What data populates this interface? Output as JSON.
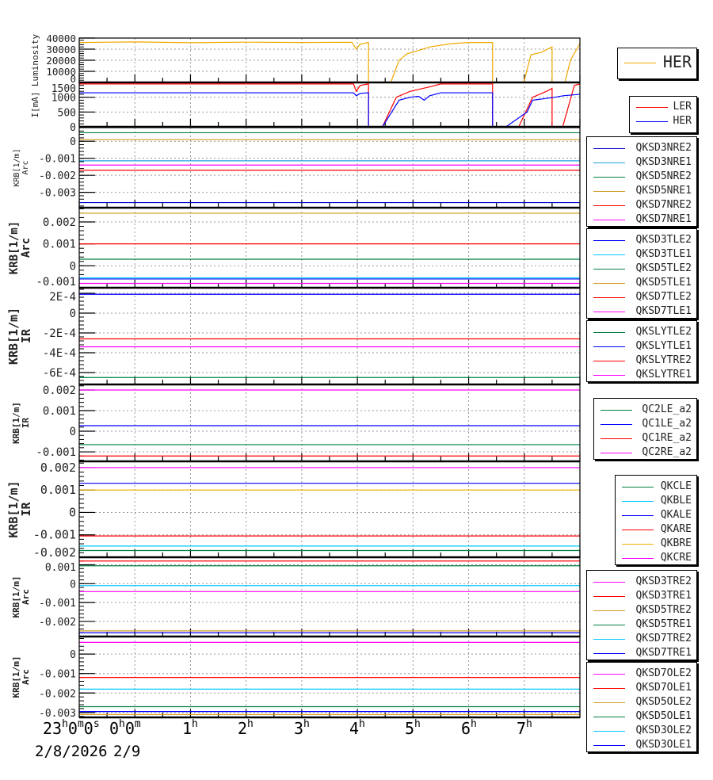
{
  "chart_data": {
    "type": "line",
    "x_axis": {
      "range_hours_from_2300": [
        0,
        9
      ],
      "tick_labels": [
        {
          "h": "23",
          "m": "0",
          "s": "0"
        },
        {
          "h": "0",
          "m": "0"
        },
        {
          "h": "1"
        },
        {
          "h": "2"
        },
        {
          "h": "3"
        },
        {
          "h": "4"
        },
        {
          "h": "5"
        },
        {
          "h": "6"
        },
        {
          "h": "7"
        }
      ],
      "unit_labels": {
        "h": "h",
        "m": "m",
        "s": "s"
      },
      "dates": [
        "2/8/2026",
        "2/9"
      ],
      "grid": true
    },
    "panels": [
      {
        "ylabel": [
          "Luminosity"
        ],
        "ylim": [
          0,
          40000
        ],
        "yticks": [
          "40000",
          "30000",
          "20000",
          "10000",
          "0"
        ],
        "ytick_values": [
          40000,
          30000,
          20000,
          10000,
          0
        ],
        "series": [
          {
            "name": "HER",
            "color": "#f0a800",
            "points": [
              [
                0,
                36000
              ],
              [
                1,
                36500
              ],
              [
                2,
                35800
              ],
              [
                3,
                36300
              ],
              [
                4,
                36000
              ],
              [
                4.9,
                36200
              ],
              [
                4.98,
                30000
              ],
              [
                5.05,
                34500
              ],
              [
                5.2,
                36000
              ],
              [
                5.2,
                0
              ],
              [
                5.6,
                0
              ],
              [
                5.75,
                20000
              ],
              [
                5.9,
                26000
              ],
              [
                6.05,
                28000
              ],
              [
                6.3,
                32000
              ],
              [
                6.7,
                35000
              ],
              [
                7.0,
                36000
              ],
              [
                7.43,
                36000
              ],
              [
                7.43,
                0
              ],
              [
                7.99,
                0
              ],
              [
                8.12,
                25000
              ],
              [
                8.3,
                27000
              ],
              [
                8.5,
                32000
              ],
              [
                8.5,
                0
              ],
              [
                8.73,
                0
              ],
              [
                8.83,
                20000
              ],
              [
                9,
                35000
              ]
            ]
          }
        ]
      },
      {
        "ylabel": [
          "I[mA]"
        ],
        "ylim": [
          0,
          1500
        ],
        "yticks": [
          "1500",
          "1000",
          "500",
          "0"
        ],
        "ytick_values": [
          1500,
          1000,
          500,
          0
        ],
        "series": [
          {
            "name": "LER",
            "color": "#ff0000",
            "points": [
              [
                0,
                1450
              ],
              [
                4.93,
                1450
              ],
              [
                4.98,
                1200
              ],
              [
                5.05,
                1400
              ],
              [
                5.2,
                1450
              ],
              [
                5.2,
                0
              ],
              [
                5.45,
                0
              ],
              [
                5.7,
                1000
              ],
              [
                5.95,
                1200
              ],
              [
                6.3,
                1350
              ],
              [
                6.5,
                1450
              ],
              [
                7.43,
                1450
              ],
              [
                7.43,
                0
              ],
              [
                7.9,
                0
              ],
              [
                8.15,
                1000
              ],
              [
                8.4,
                1200
              ],
              [
                8.5,
                1300
              ],
              [
                8.5,
                0
              ],
              [
                8.69,
                0
              ],
              [
                8.9,
                1400
              ],
              [
                9,
                1450
              ]
            ]
          },
          {
            "name": "HER",
            "color": "#0000ff",
            "points": [
              [
                0,
                1150
              ],
              [
                4.93,
                1150
              ],
              [
                4.98,
                1050
              ],
              [
                5.05,
                1130
              ],
              [
                5.2,
                1150
              ],
              [
                5.2,
                0
              ],
              [
                5.45,
                0
              ],
              [
                5.75,
                900
              ],
              [
                5.95,
                1000
              ],
              [
                6.1,
                1030
              ],
              [
                6.2,
                900
              ],
              [
                6.3,
                1050
              ],
              [
                6.5,
                1150
              ],
              [
                7.43,
                1150
              ],
              [
                7.43,
                0
              ],
              [
                7.67,
                0
              ],
              [
                8.05,
                500
              ],
              [
                8.15,
                900
              ],
              [
                8.55,
                1000
              ],
              [
                8.7,
                1050
              ],
              [
                9,
                1100
              ]
            ]
          }
        ]
      },
      {
        "ylabel": [
          "KRB[1/m]",
          "Arc"
        ],
        "ylim": [
          -0.0039,
          0.0008
        ],
        "yticks": [
          "0",
          "-0.001",
          "-0.002",
          "-0.003"
        ],
        "ytick_values": [
          0,
          -0.001,
          -0.002,
          -0.003
        ],
        "series": [
          {
            "name": "QKSD3NRE2",
            "color": "#0000cc",
            "value": -0.0036
          },
          {
            "name": "QKSD3NRE1",
            "color": "#1ca0e0",
            "value": -0.00115
          },
          {
            "name": "QKSD5NRE2",
            "color": "#008040",
            "value": 0.0005
          },
          {
            "name": "QKSD5NRE1",
            "color": "#d09a20",
            "value": 0.0001
          },
          {
            "name": "QKSD7NRE2",
            "color": "#ff0000",
            "value": -0.0017
          },
          {
            "name": "QKSD7NRE1",
            "color": "#ff00ff",
            "value": -0.0014
          }
        ]
      },
      {
        "ylabel": [
          "KRB[1/m]",
          "Arc"
        ],
        "ylim": [
          -0.001,
          0.00265
        ],
        "yticks": [
          "0.002",
          "0.001",
          "0",
          "-0.001"
        ],
        "ytick_values": [
          0.002,
          0.001,
          0,
          -0.001
        ],
        "series": [
          {
            "name": "QKSD3TLE2",
            "color": "#0000ff",
            "value": -0.0006
          },
          {
            "name": "QKSD3TLE1",
            "color": "#00c8ff",
            "value": -0.00055
          },
          {
            "name": "QKSD5TLE2",
            "color": "#008040",
            "value": 0.0003
          },
          {
            "name": "QKSD5TLE1",
            "color": "#d09a20",
            "value": 0.0024
          },
          {
            "name": "QKSD7TLE2",
            "color": "#ff0000",
            "value": 0.001
          },
          {
            "name": "QKSD7TLE1",
            "color": "#ff00ff",
            "value": -0.0008
          }
        ]
      },
      {
        "ylabel": [
          "KRB[1/m]",
          "IR"
        ],
        "ylim": [
          -0.00072,
          0.000256
        ],
        "yticks": [
          "2E-4",
          "0",
          "-2E-4",
          "-4E-4",
          "-6E-4"
        ],
        "ytick_values": [
          0.0002,
          0,
          -0.0002,
          -0.0004,
          -0.0006
        ],
        "series": [
          {
            "name": "QKSLYTLE2",
            "color": "#008040",
            "value": -0.00065
          },
          {
            "name": "QKSLYTLE1",
            "color": "#0000ff",
            "value": 0.00019
          },
          {
            "name": "QKSLYTRE2",
            "color": "#ff0000",
            "value": -0.00026
          },
          {
            "name": "QKSLYTRE1",
            "color": "#ff00ff",
            "value": -0.00034
          }
        ]
      },
      {
        "ylabel": [
          "KRB[1/m]",
          "IR"
        ],
        "ylim": [
          -0.00146,
          0.00227
        ],
        "yticks": [
          "0.002",
          "0.001",
          "0",
          "-0.001"
        ],
        "ytick_values": [
          0.002,
          0.001,
          0,
          -0.001
        ],
        "series": [
          {
            "name": "QC2LE_a2",
            "color": "#008040",
            "value": -0.00065
          },
          {
            "name": "QC1LE_a2",
            "color": "#0000ff",
            "value": 0.00027
          },
          {
            "name": "QC1RE_a2",
            "color": "#ff0000",
            "value": -0.0012
          },
          {
            "name": "QC2RE_a2",
            "color": "#ff00ff",
            "value": 0.002
          }
        ]
      },
      {
        "ylabel": [
          "KRB[1/m]",
          "IR"
        ],
        "ylim": [
          -0.002,
          0.00228
        ],
        "yticks": [
          "0.002",
          "0.001",
          "0",
          "-0.001",
          "-0.002"
        ],
        "ytick_values": [
          0.002,
          0.001,
          0,
          -0.001,
          -0.002
        ],
        "series": [
          {
            "name": "QKCLE",
            "color": "#008040",
            "value": -0.0017
          },
          {
            "name": "QKBLE",
            "color": "#00c8ff",
            "value": -0.0015
          },
          {
            "name": "QKALE",
            "color": "#0000ff",
            "value": 0.0013
          },
          {
            "name": "QKARE",
            "color": "#ff0000",
            "value": -0.00105
          },
          {
            "name": "QKBRE",
            "color": "#f0b000",
            "value": 0.001
          },
          {
            "name": "QKCRE",
            "color": "#ff00ff",
            "value": 0.002
          }
        ]
      },
      {
        "ylabel": [
          "KRB[1/m]",
          "Arc"
        ],
        "ylim": [
          -0.0028,
          0.0014
        ],
        "yticks": [
          "0.001",
          "0",
          "-0.001",
          "-0.002"
        ],
        "ytick_values": [
          0.001,
          0,
          -0.001,
          -0.002
        ],
        "series": [
          {
            "name": "QKSD3TRE2",
            "color": "#ff00ff",
            "value": -0.00042
          },
          {
            "name": "QKSD3TRE1",
            "color": "#ff0000",
            "value": 0.0012
          },
          {
            "name": "QKSD5TRE2",
            "color": "#d09a20",
            "value": -0.0025
          },
          {
            "name": "QKSD5TRE1",
            "color": "#008040",
            "value": 0.00095
          },
          {
            "name": "QKSD7TRE2",
            "color": "#00c8ff",
            "value": -0.0001
          },
          {
            "name": "QKSD7TRE1",
            "color": "#0000ff",
            "value": -0.0026
          }
        ]
      },
      {
        "ylabel": [
          "KRB[1/m]",
          "Arc"
        ],
        "ylim": [
          -0.00325,
          0.0009
        ],
        "yticks": [
          "0",
          "-0.001",
          "-0.002",
          "-0.003"
        ],
        "ytick_values": [
          0,
          -0.001,
          -0.002,
          -0.003
        ],
        "series": [
          {
            "name": "QKSD7OLE2",
            "color": "#ff00ff",
            "value": 0.0006
          },
          {
            "name": "QKSD7OLE1",
            "color": "#ff0000",
            "value": -0.0012
          },
          {
            "name": "QKSD5OLE2",
            "color": "#d09a20",
            "value": -0.0031
          },
          {
            "name": "QKSD5OLE1",
            "color": "#008040",
            "value": -0.0027
          },
          {
            "name": "QKSD3OLE2",
            "color": "#00c8ff",
            "value": -0.0018
          },
          {
            "name": "QKSD3OLE1",
            "color": "#0000ff",
            "value": -0.00295
          }
        ]
      }
    ]
  }
}
